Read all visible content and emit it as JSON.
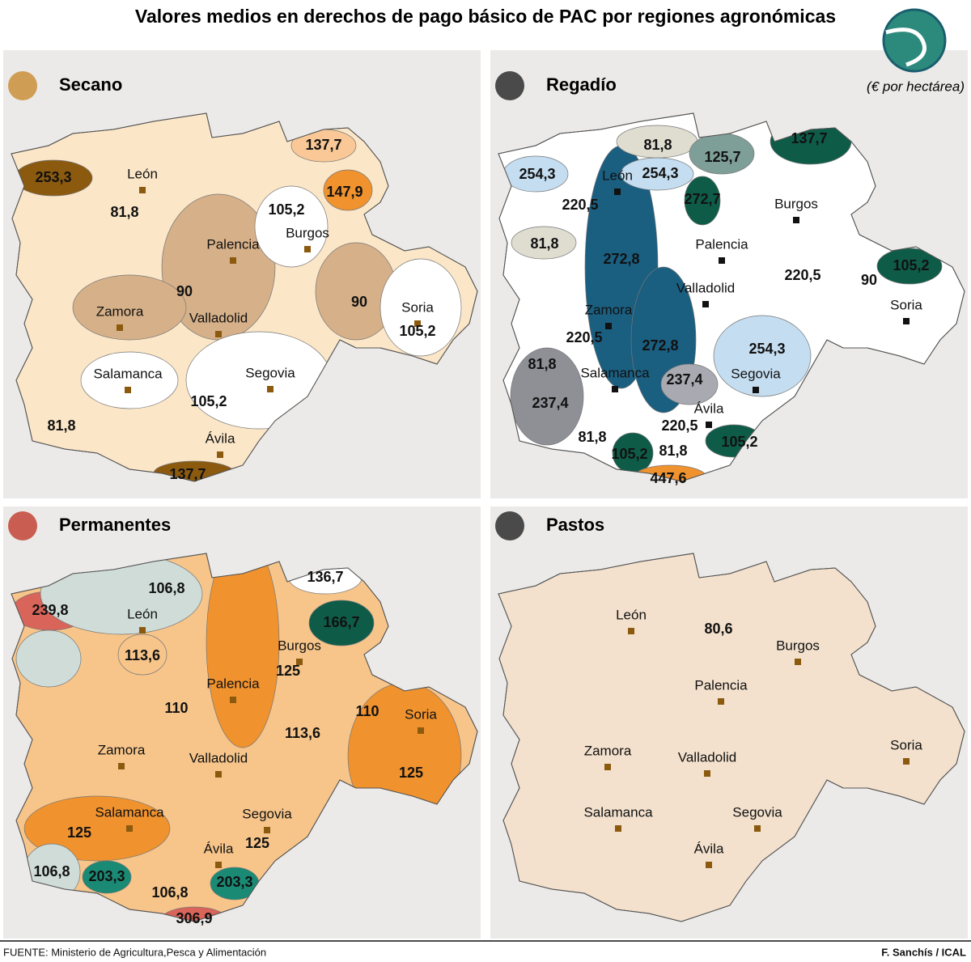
{
  "header": {
    "title": "Valores medios en derechos de pago básico de PAC por regiones agronómicas",
    "unit": "(€ por hectárea)"
  },
  "panels": [
    {
      "name": "Secano",
      "cities": [
        "León",
        "Burgos",
        "Palencia",
        "Zamora",
        "Valladolid",
        "Soria",
        "Salamanca",
        "Segovia",
        "Ávila"
      ],
      "values": [
        "253,3",
        "81,8",
        "137,7",
        "147,9",
        "105,2",
        "90",
        "90",
        "105,2",
        "105,2",
        "81,8",
        "137,7"
      ]
    },
    {
      "name": "Regadío",
      "cities": [
        "León",
        "Burgos",
        "Palencia",
        "Valladolid",
        "Zamora",
        "Soria",
        "Salamanca",
        "Segovia",
        "Ávila"
      ],
      "values": [
        "81,8",
        "125,7",
        "137,7",
        "254,3",
        "254,3",
        "272,7",
        "220,5",
        "81,8",
        "272,8",
        "105,2",
        "220,5",
        "90",
        "220,5",
        "272,8",
        "254,3",
        "81,8",
        "237,4",
        "237,4",
        "81,8",
        "220,5",
        "105,2",
        "105,2",
        "81,8",
        "447,6"
      ]
    },
    {
      "name": "Permanentes",
      "cities": [
        "León",
        "Burgos",
        "Palencia",
        "Soria",
        "Zamora",
        "Valladolid",
        "Salamanca",
        "Segovia",
        "Ávila"
      ],
      "values": [
        "106,8",
        "136,7",
        "239,8",
        "166,7",
        "113,6",
        "125",
        "110",
        "110",
        "113,6",
        "125",
        "125",
        "125",
        "106,8",
        "203,3",
        "203,3",
        "106,8",
        "306,9"
      ]
    },
    {
      "name": "Pastos",
      "cities": [
        "León",
        "Burgos",
        "Palencia",
        "Zamora",
        "Valladolid",
        "Soria",
        "Salamanca",
        "Segovia",
        "Ávila"
      ],
      "values": [
        "80,6"
      ]
    }
  ],
  "footer": {
    "source": "FUENTE: Ministerio de Agricultura,Pesca y Alimentación",
    "credit": "F. Sanchís / ICAL"
  }
}
